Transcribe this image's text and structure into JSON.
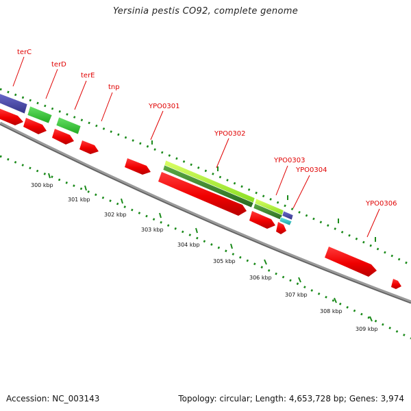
{
  "title": "Yersinia pestis CO92, complete genome",
  "footer": {
    "accession": "Accession: NC_003143",
    "summary": "Topology: circular; Length: 4,653,728 bp; Genes: 3,974"
  },
  "gene_labels": [
    "terC",
    "terD",
    "terE",
    "tnp",
    "YPO0301",
    "YPO0302",
    "YPO0303",
    "YPO0304",
    "YPO0306"
  ],
  "kbp_labels": [
    "300 kbp",
    "301 kbp",
    "302 kbp",
    "303 kbp",
    "304 kbp",
    "305 kbp",
    "306 kbp",
    "307 kbp",
    "308 kbp",
    "309 kbp"
  ],
  "colors": {
    "gene_forward": "#ff0000",
    "cog_green": "#33cc33",
    "cog_lime": "#aaff33",
    "cog_dark_green": "#3f8f2f",
    "cog_purple": "#4f4fa8",
    "cog_cyan": "#33cccc",
    "backbone": "#777777",
    "tick_green": "#1a8a1a",
    "label_red": "#e00000"
  }
}
